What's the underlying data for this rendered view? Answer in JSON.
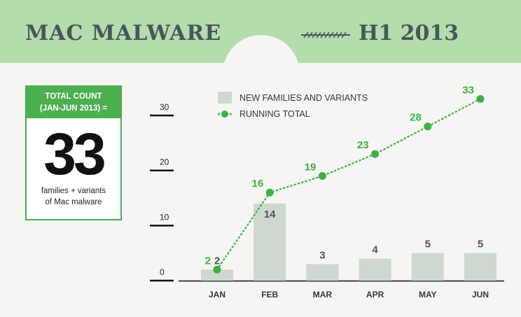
{
  "header": {
    "title": "MAC MALWARE",
    "period": "H1 2013"
  },
  "summary": {
    "label_line1": "TOTAL COUNT",
    "label_line2": "(JAN-JUN 2013) =",
    "value": "33",
    "desc_line1": "families + variants",
    "desc_line2": "of Mac malware"
  },
  "colors": {
    "bar": "#cfd8d0",
    "line": "#3cb043",
    "header": "#b5dcac",
    "text": "#49565c"
  },
  "chart_data": {
    "type": "bar",
    "categories": [
      "JAN",
      "FEB",
      "MAR",
      "APR",
      "MAY",
      "JUN"
    ],
    "ylim": [
      0,
      30
    ],
    "yticks": [
      0,
      10,
      20,
      30
    ],
    "legend_position": "top",
    "series": [
      {
        "name": "NEW FAMILIES AND VARIANTS",
        "type": "bar",
        "values": [
          2,
          14,
          3,
          4,
          5,
          5
        ]
      },
      {
        "name": "RUNNING TOTAL",
        "type": "line",
        "style": "dotted",
        "values": [
          2,
          16,
          19,
          23,
          28,
          33
        ]
      }
    ]
  }
}
